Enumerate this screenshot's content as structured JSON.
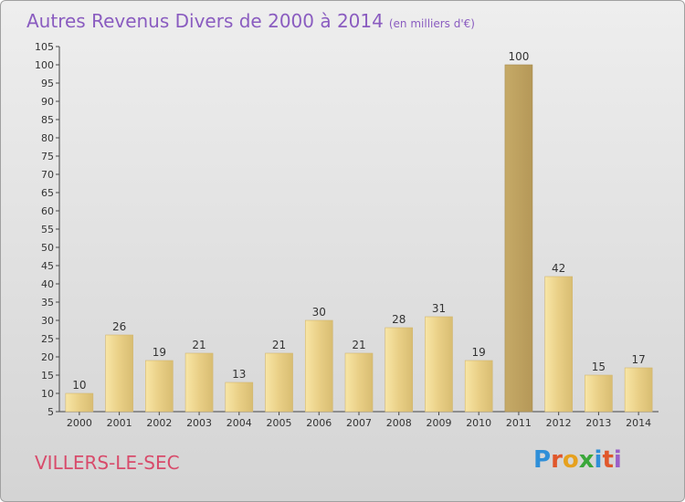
{
  "header": {
    "title": "Autres Revenus Divers de 2000 à 2014",
    "unit": "(en milliers d'€)"
  },
  "footer": {
    "city": "VILLERS-LE-SEC",
    "brand": "Proxiti"
  },
  "colors": {
    "title": "#8a5cc0",
    "city": "#d84b6b",
    "bar_light": "#f7e0a0",
    "bar_dark": "#c9ad68"
  },
  "chart_data": {
    "type": "bar",
    "title": "Autres Revenus Divers de 2000 à 2014",
    "xlabel": "",
    "ylabel": "",
    "categories": [
      "2000",
      "2001",
      "2002",
      "2003",
      "2004",
      "2005",
      "2006",
      "2007",
      "2008",
      "2009",
      "2010",
      "2011",
      "2012",
      "2013",
      "2014"
    ],
    "values": [
      10,
      26,
      19,
      21,
      13,
      21,
      30,
      21,
      28,
      31,
      19,
      100,
      42,
      15,
      17
    ],
    "ylim": [
      5,
      105
    ],
    "yticks": [
      5,
      10,
      15,
      20,
      25,
      30,
      35,
      40,
      45,
      50,
      55,
      60,
      65,
      70,
      75,
      80,
      85,
      90,
      95,
      100,
      105
    ],
    "grid": false,
    "data_labels": true
  }
}
